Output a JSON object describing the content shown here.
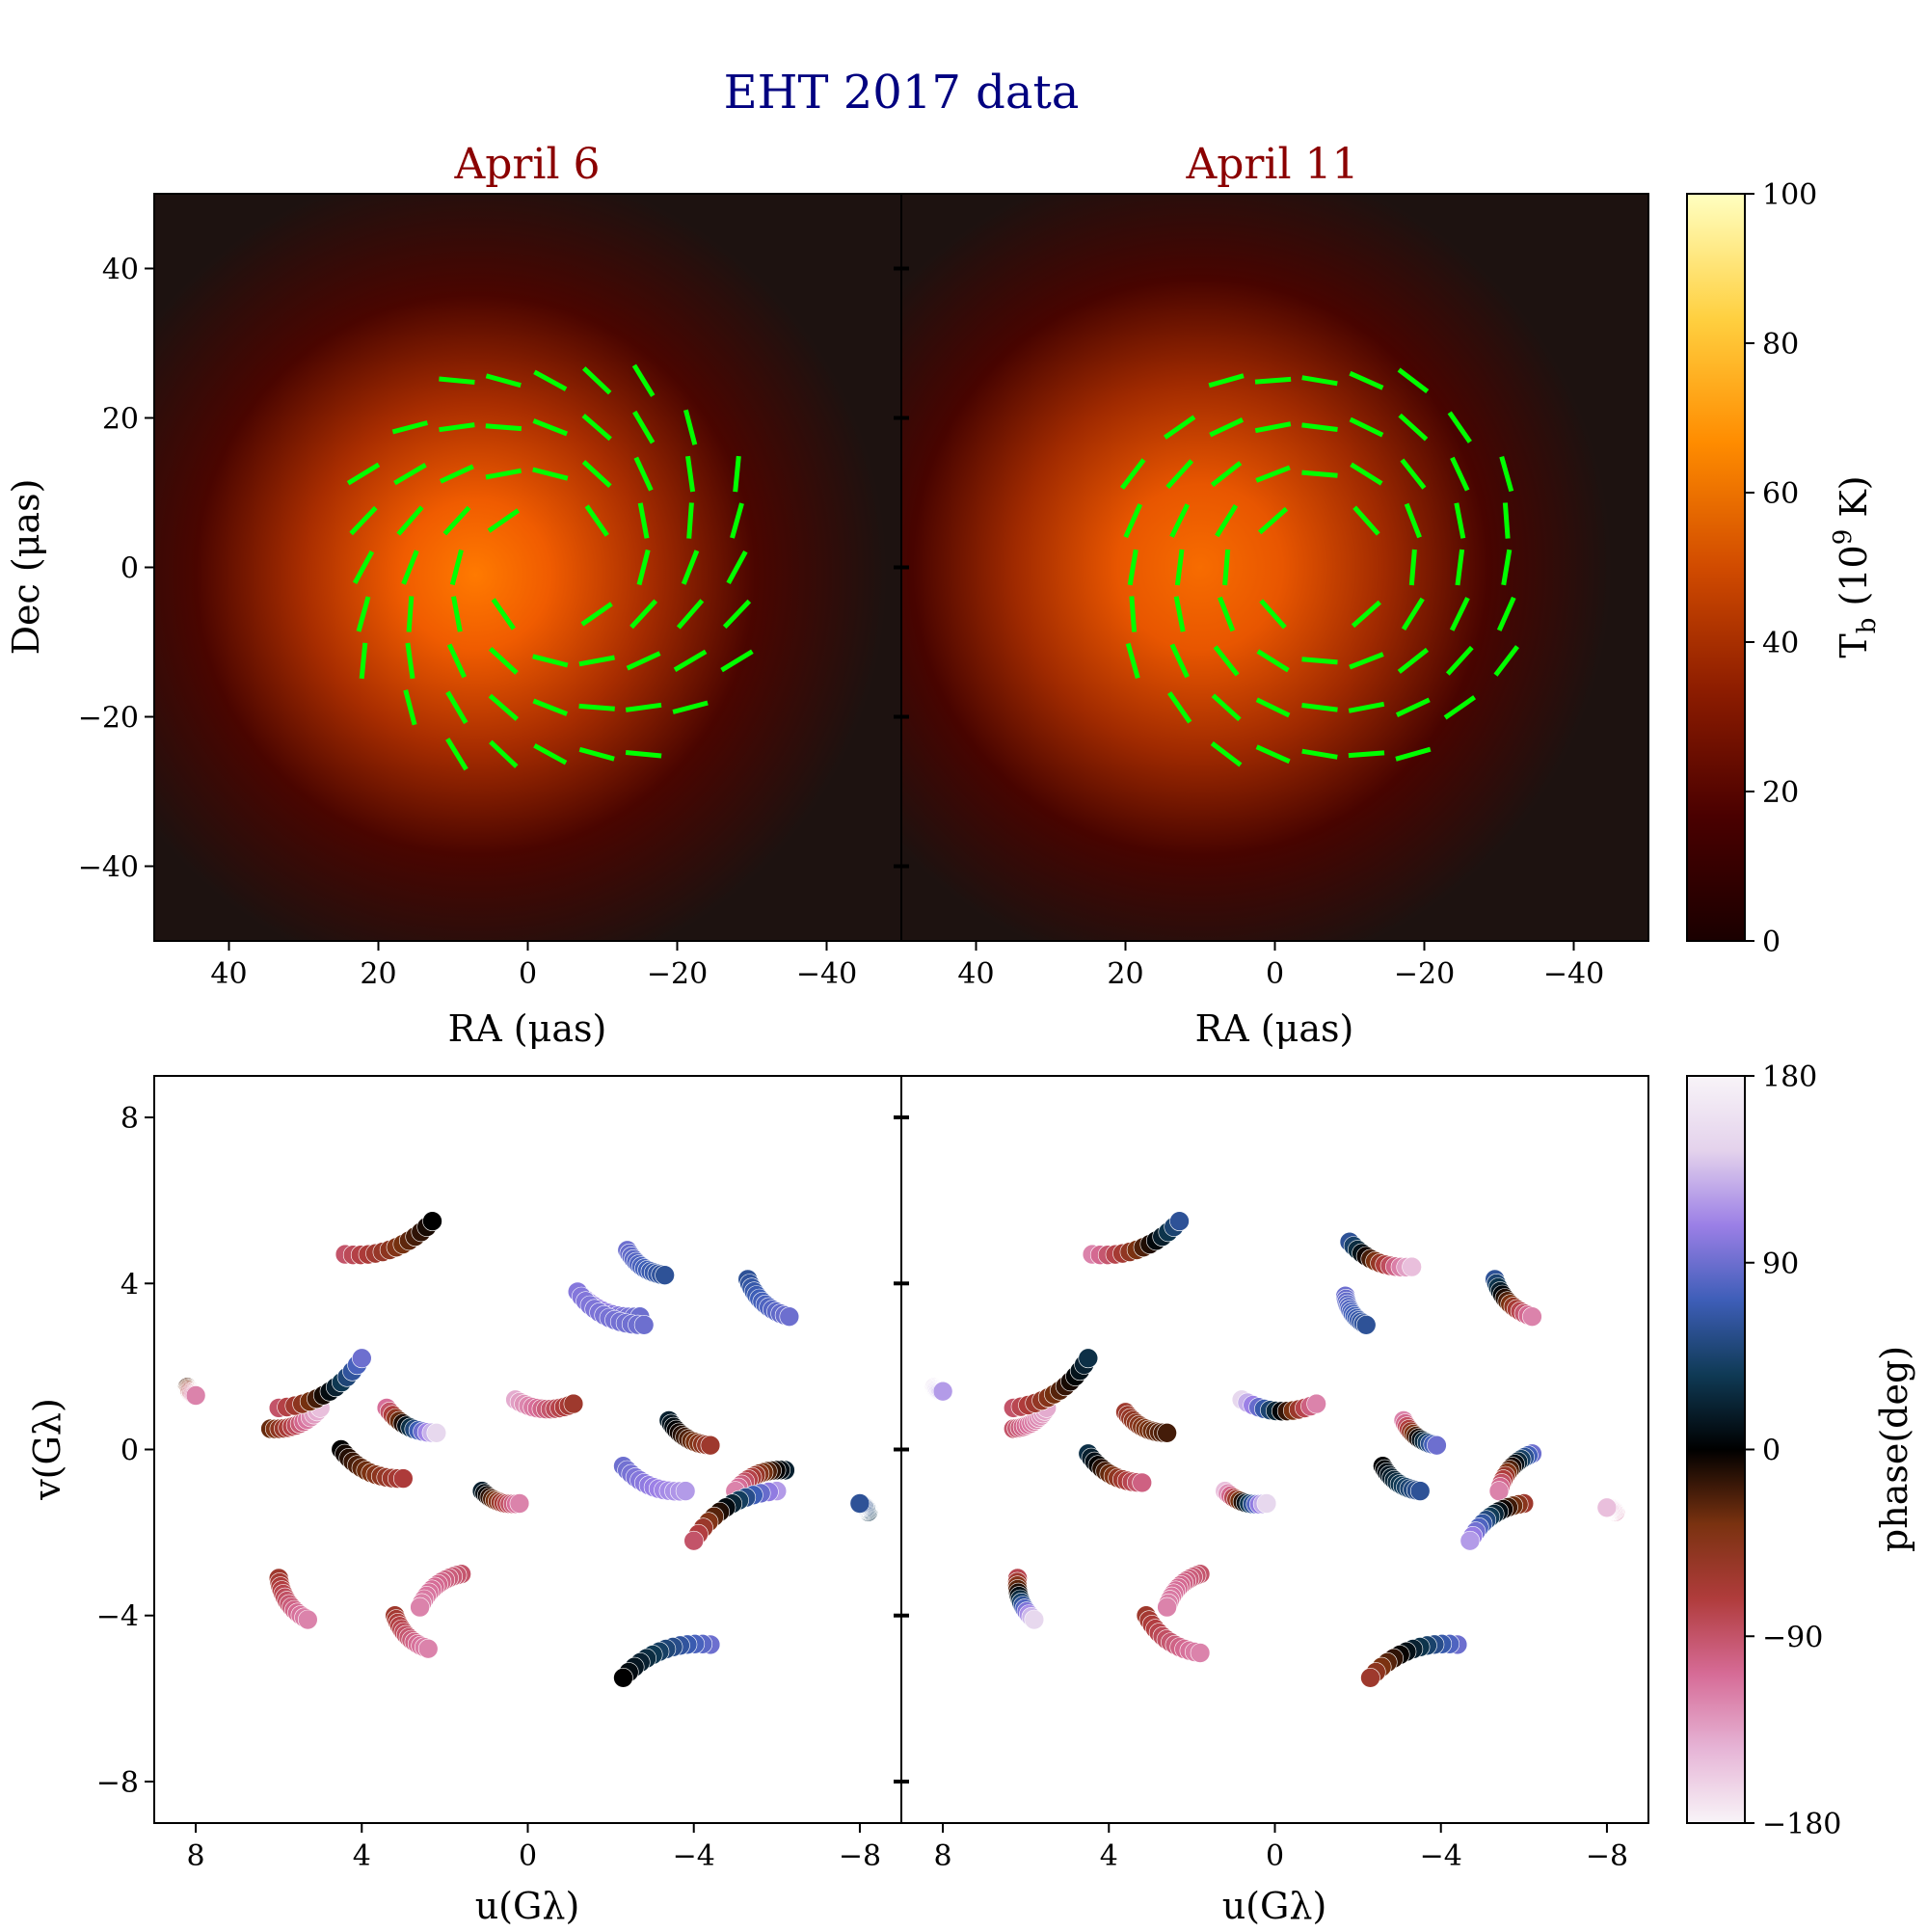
{
  "figure": {
    "suptitle": "EHT 2017 data"
  },
  "image_panels": {
    "titles": [
      "April 6",
      "April 11"
    ],
    "xlabel": "RA (μas)",
    "ylabel": "Dec (μas)",
    "xticks": [
      "40",
      "20",
      "0",
      "−20",
      "−40"
    ],
    "yticks": [
      "40",
      "20",
      "0",
      "−20",
      "−40"
    ]
  },
  "uv_panels": {
    "xlabel": "u(Gλ)",
    "ylabel": "v(Gλ)",
    "xticks": [
      "8",
      "4",
      "0",
      "−4",
      "−8"
    ],
    "yticks": [
      "8",
      "4",
      "0",
      "−4",
      "−8"
    ]
  },
  "colorbar_tb": {
    "label_main": "T",
    "label_sub": "b",
    "label_rest": " (10",
    "label_sup": "9",
    "label_end": " K)",
    "ticks": [
      "100",
      "80",
      "60",
      "40",
      "20",
      "0"
    ],
    "colors": [
      "#1a0000",
      "#4a0000",
      "#8c1c00",
      "#d14b00",
      "#ff8c00",
      "#ffd040",
      "#ffffc0"
    ]
  },
  "colorbar_phase": {
    "label": "phase(deg)",
    "ticks": [
      "180",
      "90",
      "0",
      "−90",
      "−180"
    ],
    "colors": [
      "#f8f4f8",
      "#e6b4d6",
      "#d66b96",
      "#b03c3c",
      "#7a3210",
      "#000000",
      "#0f3a55",
      "#3e5eb8",
      "#9b7fe6",
      "#e4d2ec",
      "#f8f4f8"
    ]
  },
  "chart_data": [
    {
      "type": "heatmap",
      "title": "April 6",
      "xlabel": "RA (μas)",
      "ylabel": "Dec (μas)",
      "xlim": [
        50,
        -50
      ],
      "ylim": [
        -50,
        50
      ],
      "clim": [
        0,
        100
      ],
      "description_values": {
        "ring_center": [
          5,
          -2
        ],
        "peak_tb": 58,
        "peak_position": [
          13,
          0
        ]
      },
      "evpa_ticks_grid_spacing_uas": 6.25
    },
    {
      "type": "heatmap",
      "title": "April 11",
      "xlabel": "RA (μas)",
      "ylabel": "Dec (μas)",
      "xlim": [
        50,
        -50
      ],
      "ylim": [
        -50,
        50
      ],
      "clim": [
        0,
        100
      ],
      "description_values": {
        "ring_center": [
          2,
          -2
        ],
        "peak_tb": 55,
        "peak_position": [
          20,
          2
        ]
      },
      "evpa_ticks_grid_spacing_uas": 6.25
    },
    {
      "type": "scatter",
      "title": "",
      "xlabel": "u(Gλ)",
      "ylabel": "v(Gλ)",
      "xlim": [
        9,
        -9
      ],
      "ylim": [
        -9,
        9
      ],
      "clim": [
        -180,
        180
      ],
      "tracks": [
        {
          "from": [
            4.4,
            4.7
          ],
          "to": [
            2.3,
            5.5
          ],
          "phase": [
            90,
            0
          ]
        },
        {
          "from": [
            -4.4,
            -4.7
          ],
          "to": [
            -2.3,
            -5.5
          ],
          "phase": [
            -90,
            0
          ]
        },
        {
          "from": [
            -1.2,
            3.8
          ],
          "to": [
            -2.7,
            3.2
          ],
          "phase": [
            -120,
            -90
          ]
        },
        {
          "from": [
            -1.2,
            3.8
          ],
          "to": [
            -2.8,
            3.0
          ],
          "phase": [
            -100,
            -90
          ]
        },
        {
          "from": [
            -2.4,
            4.8
          ],
          "to": [
            -3.3,
            4.2
          ],
          "phase": [
            -90,
            -60
          ]
        },
        {
          "from": [
            -5.3,
            4.1
          ],
          "to": [
            -6.3,
            3.2
          ],
          "phase": [
            -60,
            -90
          ]
        },
        {
          "from": [
            8.2,
            1.5
          ],
          "to": [
            8.0,
            1.3
          ],
          "phase": [
            20,
            120
          ]
        },
        {
          "from": [
            -8.2,
            -1.5
          ],
          "to": [
            -8.0,
            -1.3
          ],
          "phase": [
            -30,
            -60
          ]
        },
        {
          "from": [
            6.2,
            0.5
          ],
          "to": [
            5.0,
            1.0
          ],
          "phase": [
            30,
            150
          ]
        },
        {
          "from": [
            6.0,
            1.0
          ],
          "to": [
            4.0,
            2.2
          ],
          "phase": [
            90,
            -90
          ]
        },
        {
          "from": [
            -6.2,
            -0.5
          ],
          "to": [
            -5.0,
            -1.0
          ],
          "phase": [
            -20,
            120
          ]
        },
        {
          "from": [
            -6.0,
            -1.0
          ],
          "to": [
            -4.0,
            -2.2
          ],
          "phase": [
            -120,
            90
          ]
        },
        {
          "from": [
            3.4,
            1.0
          ],
          "to": [
            2.2,
            0.4
          ],
          "phase": [
            110,
            -150
          ]
        },
        {
          "from": [
            -3.4,
            0.7
          ],
          "to": [
            -4.4,
            0.1
          ],
          "phase": [
            -20,
            60
          ]
        },
        {
          "from": [
            4.5,
            0.0
          ],
          "to": [
            3.0,
            -0.7
          ],
          "phase": [
            0,
            70
          ]
        },
        {
          "from": [
            -2.3,
            -0.4
          ],
          "to": [
            -3.8,
            -1.0
          ],
          "phase": [
            -90,
            -120
          ]
        },
        {
          "from": [
            0.3,
            1.2
          ],
          "to": [
            -1.1,
            1.1
          ],
          "phase": [
            140,
            60
          ]
        },
        {
          "from": [
            1.1,
            -1.0
          ],
          "to": [
            0.2,
            -1.3
          ],
          "phase": [
            -20,
            120
          ]
        },
        {
          "from": [
            6.0,
            -3.1
          ],
          "to": [
            5.3,
            -4.1
          ],
          "phase": [
            60,
            120
          ]
        },
        {
          "from": [
            1.6,
            -3.0
          ],
          "to": [
            2.6,
            -3.8
          ],
          "phase": [
            90,
            120
          ]
        },
        {
          "from": [
            3.2,
            -4.0
          ],
          "to": [
            2.4,
            -4.8
          ],
          "phase": [
            60,
            120
          ]
        }
      ]
    },
    {
      "type": "scatter",
      "title": "",
      "xlabel": "u(Gλ)",
      "ylabel": "v(Gλ)",
      "xlim": [
        9,
        -9
      ],
      "ylim": [
        -9,
        9
      ],
      "clim": [
        -180,
        180
      ],
      "tracks": [
        {
          "from": [
            4.4,
            4.7
          ],
          "to": [
            2.3,
            5.5
          ],
          "phase": [
            120,
            -60
          ]
        },
        {
          "from": [
            -4.4,
            -4.7
          ],
          "to": [
            -2.3,
            -5.5
          ],
          "phase": [
            -90,
            60
          ]
        },
        {
          "from": [
            -1.7,
            3.7
          ],
          "to": [
            -2.2,
            3.0
          ],
          "phase": [
            -90,
            -60
          ]
        },
        {
          "from": [
            -1.8,
            5.0
          ],
          "to": [
            -3.3,
            4.4
          ],
          "phase": [
            -60,
            150
          ]
        },
        {
          "from": [
            -5.3,
            4.1
          ],
          "to": [
            -6.2,
            3.2
          ],
          "phase": [
            -60,
            120
          ]
        },
        {
          "from": [
            8.2,
            1.5
          ],
          "to": [
            8.0,
            1.4
          ],
          "phase": [
            -150,
            -120
          ]
        },
        {
          "from": [
            -8.2,
            -1.5
          ],
          "to": [
            -8.0,
            -1.4
          ],
          "phase": [
            120,
            150
          ]
        },
        {
          "from": [
            6.3,
            0.5
          ],
          "to": [
            5.5,
            1.0
          ],
          "phase": [
            90,
            140
          ]
        },
        {
          "from": [
            6.3,
            1.0
          ],
          "to": [
            4.5,
            2.2
          ],
          "phase": [
            90,
            -30
          ]
        },
        {
          "from": [
            -6.2,
            -0.1
          ],
          "to": [
            -5.4,
            -1.0
          ],
          "phase": [
            -90,
            120
          ]
        },
        {
          "from": [
            -6.0,
            -1.3
          ],
          "to": [
            -4.7,
            -2.2
          ],
          "phase": [
            60,
            -120
          ]
        },
        {
          "from": [
            3.6,
            0.9
          ],
          "to": [
            2.6,
            0.4
          ],
          "phase": [
            60,
            20
          ]
        },
        {
          "from": [
            -3.1,
            0.7
          ],
          "to": [
            -3.9,
            0.1
          ],
          "phase": [
            120,
            -90
          ]
        },
        {
          "from": [
            4.5,
            -0.1
          ],
          "to": [
            3.2,
            -0.8
          ],
          "phase": [
            -30,
            100
          ]
        },
        {
          "from": [
            -2.6,
            -0.4
          ],
          "to": [
            -3.5,
            -1.0
          ],
          "phase": [
            0,
            -60
          ]
        },
        {
          "from": [
            0.8,
            1.2
          ],
          "to": [
            -1.0,
            1.1
          ],
          "phase": [
            -150,
            120
          ]
        },
        {
          "from": [
            1.2,
            -1.0
          ],
          "to": [
            0.2,
            -1.3
          ],
          "phase": [
            150,
            -150
          ]
        },
        {
          "from": [
            6.2,
            -3.1
          ],
          "to": [
            5.8,
            -4.1
          ],
          "phase": [
            80,
            -150
          ]
        },
        {
          "from": [
            1.8,
            -3.0
          ],
          "to": [
            2.6,
            -3.8
          ],
          "phase": [
            90,
            120
          ]
        },
        {
          "from": [
            3.1,
            -4.0
          ],
          "to": [
            1.8,
            -4.9
          ],
          "phase": [
            60,
            120
          ]
        }
      ]
    }
  ]
}
